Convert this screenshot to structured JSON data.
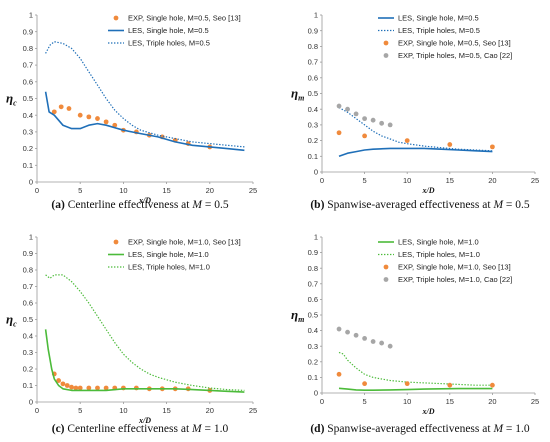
{
  "chart_data": [
    {
      "type": "line",
      "caption": {
        "letter": "(a)",
        "text": " Centerline effectiveness at ",
        "var": "M",
        "value": " = 0.5"
      },
      "xlabel": "x/D",
      "ylabel": "η",
      "ylabel_sub": "c",
      "xlim": [
        0,
        25
      ],
      "ylim": [
        0,
        1
      ],
      "xticks": [
        "0",
        "5",
        "10",
        "15",
        "20",
        "25"
      ],
      "yticks": [
        "0",
        "0.1",
        "0.2",
        "0.3",
        "0.4",
        "0.5",
        "0.6",
        "0.7",
        "0.8",
        "0.9",
        "1"
      ],
      "legend_position": "top-right",
      "series": [
        {
          "name": "EXP, Single hole, M=0.5, Seo [13]",
          "kind": "markers",
          "color": "#f08a3c",
          "x": [
            2,
            2.8,
            3.7,
            5,
            6,
            7,
            8,
            9,
            10,
            11.5,
            13,
            14.5,
            16,
            17.5,
            20
          ],
          "y": [
            0.42,
            0.45,
            0.44,
            0.4,
            0.39,
            0.38,
            0.36,
            0.34,
            0.31,
            0.3,
            0.28,
            0.27,
            0.25,
            0.23,
            0.21
          ]
        },
        {
          "name": "LES, Single hole, M=0.5",
          "kind": "solid",
          "color": "#1f6fb8",
          "x": [
            1,
            1.4,
            2,
            3,
            4,
            5,
            6,
            7,
            8,
            10,
            12,
            14,
            16,
            18,
            20,
            22,
            24
          ],
          "y": [
            0.54,
            0.42,
            0.4,
            0.34,
            0.32,
            0.32,
            0.34,
            0.35,
            0.34,
            0.31,
            0.29,
            0.27,
            0.24,
            0.22,
            0.21,
            0.2,
            0.19
          ]
        },
        {
          "name": "LES, Triple holes, M=0.5",
          "kind": "dotted",
          "color": "#1f6fb8",
          "x": [
            1,
            1.5,
            2,
            3,
            4,
            5,
            6,
            7,
            8,
            9,
            10,
            11,
            12,
            14,
            16,
            18,
            20,
            22,
            24
          ],
          "y": [
            0.77,
            0.82,
            0.84,
            0.83,
            0.8,
            0.74,
            0.66,
            0.58,
            0.5,
            0.43,
            0.38,
            0.34,
            0.31,
            0.28,
            0.26,
            0.24,
            0.23,
            0.22,
            0.21
          ]
        }
      ]
    },
    {
      "type": "line",
      "caption": {
        "letter": "(b)",
        "text": " Spanwise-averaged effectiveness at ",
        "var": "M",
        "value": " = 0.5"
      },
      "xlabel": "x/D",
      "ylabel": "η",
      "ylabel_sub": "m",
      "xlim": [
        0,
        25
      ],
      "ylim": [
        0,
        1
      ],
      "xticks": [
        "0",
        "5",
        "10",
        "15",
        "20",
        "25"
      ],
      "yticks": [
        "0",
        "0.1",
        "0.2",
        "0.3",
        "0.4",
        "0.5",
        "0.6",
        "0.7",
        "0.8",
        "0.9",
        "1"
      ],
      "legend_position": "top-right",
      "series": [
        {
          "name": "LES, Single hole, M=0.5",
          "kind": "solid",
          "color": "#1f6fb8",
          "x": [
            2,
            3,
            4,
            5,
            6,
            8,
            10,
            12,
            14,
            16,
            18,
            20
          ],
          "y": [
            0.1,
            0.12,
            0.13,
            0.14,
            0.145,
            0.15,
            0.15,
            0.15,
            0.145,
            0.14,
            0.135,
            0.13
          ]
        },
        {
          "name": "LES, Triple holes, M=0.5",
          "kind": "dotted",
          "color": "#1f6fb8",
          "x": [
            2,
            3,
            4,
            5,
            6,
            7,
            8,
            9,
            10,
            12,
            14,
            16,
            18,
            20
          ],
          "y": [
            0.41,
            0.38,
            0.34,
            0.3,
            0.26,
            0.23,
            0.21,
            0.19,
            0.18,
            0.165,
            0.155,
            0.145,
            0.14,
            0.135
          ]
        },
        {
          "name": "EXP, Single hole, M=0.5, Seo [13]",
          "kind": "markers",
          "color": "#f08a3c",
          "x": [
            2,
            5,
            10,
            15,
            20
          ],
          "y": [
            0.25,
            0.23,
            0.2,
            0.175,
            0.16
          ]
        },
        {
          "name": "EXP, Triple holes, M=0.5, Cao [22]",
          "kind": "markers",
          "color": "#a6a6a6",
          "x": [
            2,
            3,
            4,
            5,
            6,
            7,
            8
          ],
          "y": [
            0.42,
            0.4,
            0.37,
            0.34,
            0.33,
            0.31,
            0.3
          ]
        }
      ]
    },
    {
      "type": "line",
      "caption": {
        "letter": "(c)",
        "text": " Centerline effectiveness at ",
        "var": "M",
        "value": " = 1.0"
      },
      "xlabel": "x/D",
      "ylabel": "η",
      "ylabel_sub": "c",
      "xlim": [
        0,
        25
      ],
      "ylim": [
        0,
        1
      ],
      "xticks": [
        "0",
        "5",
        "10",
        "15",
        "20",
        "25"
      ],
      "yticks": [
        "0",
        "0.1",
        "0.2",
        "0.3",
        "0.4",
        "0.5",
        "0.6",
        "0.7",
        "0.8",
        "0.9",
        "1"
      ],
      "legend_position": "top-right",
      "series": [
        {
          "name": "EXP, Single hole, M=1.0, Seo [13]",
          "kind": "markers",
          "color": "#f08a3c",
          "x": [
            2,
            2.5,
            3,
            3.5,
            4,
            4.5,
            5,
            6,
            7,
            8,
            9,
            10,
            11.5,
            13,
            14.5,
            16,
            17.5,
            20
          ],
          "y": [
            0.17,
            0.13,
            0.11,
            0.1,
            0.09,
            0.085,
            0.085,
            0.085,
            0.085,
            0.085,
            0.085,
            0.085,
            0.085,
            0.08,
            0.08,
            0.08,
            0.08,
            0.07
          ]
        },
        {
          "name": "LES, Single hole, M=1.0",
          "kind": "solid",
          "color": "#4cbb3a",
          "x": [
            1,
            1.3,
            1.7,
            2,
            2.5,
            3,
            4,
            5,
            6,
            8,
            10,
            12,
            14,
            16,
            18,
            20,
            22,
            24
          ],
          "y": [
            0.44,
            0.32,
            0.2,
            0.14,
            0.1,
            0.08,
            0.07,
            0.07,
            0.07,
            0.07,
            0.08,
            0.08,
            0.08,
            0.08,
            0.075,
            0.07,
            0.065,
            0.06
          ]
        },
        {
          "name": "LES, Triple holes, M=1.0",
          "kind": "dotted",
          "color": "#4cbb3a",
          "x": [
            1,
            1.5,
            2,
            3,
            4,
            5,
            6,
            7,
            8,
            9,
            10,
            11,
            12,
            13,
            14,
            16,
            18,
            20,
            22,
            24
          ],
          "y": [
            0.77,
            0.75,
            0.77,
            0.77,
            0.73,
            0.67,
            0.6,
            0.52,
            0.44,
            0.36,
            0.29,
            0.24,
            0.2,
            0.17,
            0.15,
            0.12,
            0.1,
            0.085,
            0.075,
            0.07
          ]
        }
      ]
    },
    {
      "type": "line",
      "caption": {
        "letter": "(d)",
        "text": " Spanwise-averaged effectiveness at ",
        "var": "M",
        "value": " = 1.0"
      },
      "xlabel": "x/D",
      "ylabel": "η",
      "ylabel_sub": "m",
      "xlim": [
        0,
        25
      ],
      "ylim": [
        0,
        1
      ],
      "xticks": [
        "0",
        "5",
        "10",
        "15",
        "20",
        "25"
      ],
      "yticks": [
        "0",
        "0.1",
        "0.2",
        "0.3",
        "0.4",
        "0.5",
        "0.6",
        "0.7",
        "0.8",
        "0.9",
        "1"
      ],
      "legend_position": "top-right",
      "series": [
        {
          "name": "LES, Single hole, M=1.0",
          "kind": "solid",
          "color": "#4cbb3a",
          "x": [
            2,
            3,
            4,
            5,
            6,
            8,
            10,
            12,
            14,
            16,
            18,
            20
          ],
          "y": [
            0.03,
            0.025,
            0.02,
            0.018,
            0.018,
            0.02,
            0.022,
            0.025,
            0.027,
            0.028,
            0.028,
            0.028
          ]
        },
        {
          "name": "LES, Triple holes, M=1.0",
          "kind": "dotted",
          "color": "#4cbb3a",
          "x": [
            2,
            2.5,
            3,
            4,
            5,
            6,
            7,
            8,
            10,
            12,
            14,
            16,
            18,
            20
          ],
          "y": [
            0.26,
            0.25,
            0.21,
            0.16,
            0.12,
            0.1,
            0.09,
            0.08,
            0.07,
            0.065,
            0.06,
            0.055,
            0.05,
            0.05
          ]
        },
        {
          "name": "EXP, Single hole, M=1.0, Seo [13]",
          "kind": "markers",
          "color": "#f08a3c",
          "x": [
            2,
            5,
            10,
            15,
            20
          ],
          "y": [
            0.12,
            0.06,
            0.06,
            0.05,
            0.05
          ]
        },
        {
          "name": "EXP, Triple holes, M=1.0, Cao [22]",
          "kind": "markers",
          "color": "#a6a6a6",
          "x": [
            2,
            3,
            4,
            5,
            6,
            7,
            8
          ],
          "y": [
            0.41,
            0.39,
            0.37,
            0.35,
            0.33,
            0.32,
            0.3
          ]
        }
      ]
    }
  ]
}
